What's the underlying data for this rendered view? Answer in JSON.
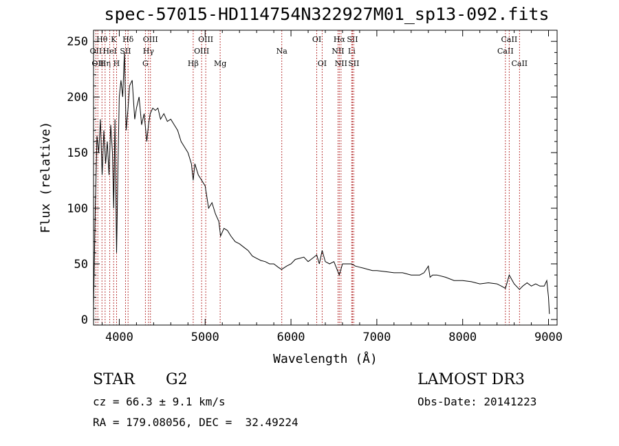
{
  "chart_data": {
    "type": "line",
    "title": "spec-57015-HD114754N322927M01_sp13-092.fits",
    "xlabel": "Wavelength (Å)",
    "ylabel": "Flux (relative)",
    "xlim": [
      3700,
      9100
    ],
    "ylim": [
      -5,
      260
    ],
    "x_ticks": [
      4000,
      5000,
      6000,
      7000,
      8000,
      9000
    ],
    "y_ticks": [
      0,
      50,
      100,
      150,
      200,
      250
    ],
    "series": [
      {
        "name": "flux",
        "x": [
          3700,
          3720,
          3740,
          3760,
          3780,
          3800,
          3820,
          3840,
          3860,
          3880,
          3900,
          3920,
          3935,
          3950,
          3968,
          3985,
          4000,
          4020,
          4040,
          4060,
          4080,
          4102,
          4120,
          4150,
          4180,
          4200,
          4230,
          4260,
          4290,
          4320,
          4340,
          4360,
          4390,
          4420,
          4450,
          4480,
          4520,
          4560,
          4600,
          4640,
          4680,
          4720,
          4760,
          4800,
          4840,
          4861,
          4880,
          4920,
          4960,
          5000,
          5040,
          5080,
          5120,
          5160,
          5180,
          5220,
          5260,
          5300,
          5350,
          5400,
          5450,
          5500,
          5550,
          5600,
          5650,
          5700,
          5750,
          5800,
          5850,
          5890,
          5950,
          6000,
          6050,
          6100,
          6150,
          6200,
          6250,
          6300,
          6330,
          6363,
          6400,
          6450,
          6500,
          6563,
          6600,
          6650,
          6707,
          6750,
          6800,
          6850,
          6900,
          6950,
          7000,
          7100,
          7200,
          7300,
          7400,
          7500,
          7550,
          7600,
          7620,
          7650,
          7700,
          7800,
          7900,
          8000,
          8100,
          8200,
          8300,
          8400,
          8450,
          8498,
          8542,
          8600,
          8662,
          8700,
          8750,
          8800,
          8850,
          8900,
          8950,
          8980,
          9000,
          9010
        ],
        "values": [
          10,
          100,
          165,
          150,
          180,
          130,
          170,
          140,
          160,
          130,
          175,
          150,
          100,
          180,
          60,
          140,
          200,
          215,
          200,
          240,
          170,
          190,
          210,
          215,
          180,
          190,
          200,
          175,
          185,
          160,
          175,
          185,
          190,
          188,
          190,
          180,
          185,
          178,
          180,
          175,
          170,
          160,
          155,
          150,
          140,
          125,
          140,
          130,
          125,
          120,
          100,
          105,
          95,
          88,
          75,
          82,
          80,
          75,
          70,
          68,
          65,
          62,
          57,
          55,
          53,
          52,
          50,
          50,
          47,
          45,
          48,
          50,
          54,
          55,
          56,
          52,
          55,
          58,
          50,
          62,
          52,
          50,
          52,
          40,
          50,
          50,
          50,
          48,
          47,
          46,
          45,
          44,
          44,
          43,
          42,
          42,
          40,
          40,
          42,
          48,
          38,
          40,
          40,
          38,
          35,
          35,
          34,
          32,
          33,
          32,
          30,
          28,
          40,
          32,
          27,
          30,
          33,
          30,
          32,
          30,
          30,
          35,
          20,
          5
        ]
      }
    ],
    "lines": [
      {
        "wl": 3727,
        "label": "OII",
        "row": 1
      },
      {
        "wl": 3750,
        "label": "OII",
        "row": 2
      },
      {
        "wl": 3798,
        "label": "Hθ",
        "row": 0
      },
      {
        "wl": 3835,
        "label": "Hη",
        "row": 2
      },
      {
        "wl": 3889,
        "label": "HeI",
        "row": 1
      },
      {
        "wl": 3934,
        "label": "K",
        "row": 0
      },
      {
        "wl": 3968,
        "label": "H",
        "row": 2
      },
      {
        "wl": 4072,
        "label": "SII",
        "row": 1
      },
      {
        "wl": 4102,
        "label": "Hδ",
        "row": 0
      },
      {
        "wl": 4304,
        "label": "G",
        "row": 2
      },
      {
        "wl": 4340,
        "label": "Hγ",
        "row": 1
      },
      {
        "wl": 4363,
        "label": "OIII",
        "row": 0
      },
      {
        "wl": 4861,
        "label": "Hβ",
        "row": 2
      },
      {
        "wl": 4959,
        "label": "OIII",
        "row": 1
      },
      {
        "wl": 5007,
        "label": "OIII",
        "row": 0
      },
      {
        "wl": 5175,
        "label": "Mg",
        "row": 2
      },
      {
        "wl": 5893,
        "label": "Na",
        "row": 1
      },
      {
        "wl": 6300,
        "label": "OI",
        "row": 0
      },
      {
        "wl": 6363,
        "label": "OI",
        "row": 2
      },
      {
        "wl": 6548,
        "label": "NII",
        "row": 1
      },
      {
        "wl": 6563,
        "label": "Hα",
        "row": 0
      },
      {
        "wl": 6583,
        "label": "NII",
        "row": 2
      },
      {
        "wl": 6707,
        "label": "Li",
        "row": 1
      },
      {
        "wl": 6716,
        "label": "SII",
        "row": 0
      },
      {
        "wl": 6731,
        "label": "SII",
        "row": 2
      },
      {
        "wl": 8498,
        "label": "CaII",
        "row": 1
      },
      {
        "wl": 8542,
        "label": "CaII",
        "row": 0
      },
      {
        "wl": 8662,
        "label": "CaII",
        "row": 2
      }
    ]
  },
  "info": {
    "class": "STAR",
    "subclass": "G2",
    "survey": "LAMOST DR3",
    "redshift": "cz = 66.3 ± 9.1 km/s",
    "obs_date": "Obs-Date: 20141223",
    "coords": "RA = 179.08056, DEC =  32.49224"
  },
  "colors": {
    "spectrum": "#000000",
    "line_markers": "#b22222",
    "axes": "#000000"
  }
}
